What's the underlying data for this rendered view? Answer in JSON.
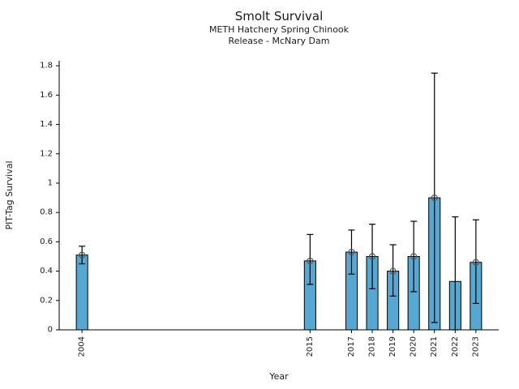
{
  "window": {
    "background": "#ffffff"
  },
  "chart_data": {
    "type": "bar",
    "title": "Smolt Survival",
    "subtitle": [
      "METH Hatchery Spring Chinook",
      "Release - McNary Dam"
    ],
    "xlabel": "Year",
    "ylabel": "PIT-Tag Survival",
    "categories": [
      "2004",
      "2015",
      "2017",
      "2018",
      "2019",
      "2020",
      "2021",
      "2022",
      "2023"
    ],
    "x": [
      2004,
      2015,
      2017,
      2018,
      2019,
      2020,
      2021,
      2022,
      2023
    ],
    "values": [
      0.51,
      0.47,
      0.53,
      0.5,
      0.4,
      0.5,
      0.9,
      0.33,
      0.46
    ],
    "error_low": [
      0.45,
      0.31,
      0.38,
      0.28,
      0.23,
      0.26,
      0.05,
      0.0,
      0.18
    ],
    "error_high": [
      0.57,
      0.65,
      0.68,
      0.72,
      0.58,
      0.74,
      1.75,
      0.77,
      0.75
    ],
    "point_marker_shown": [
      true,
      true,
      true,
      true,
      true,
      true,
      true,
      false,
      true
    ],
    "xlim": [
      2002.9,
      2024.1
    ],
    "ylim": [
      0,
      1.834
    ],
    "yticks": [
      0,
      0.2,
      0.4,
      0.6,
      0.8,
      1,
      1.2,
      1.4,
      1.6,
      1.8
    ],
    "ytick_labels": [
      "0",
      "0.2",
      "0.4",
      "0.6",
      "0.8",
      "1",
      "1.2",
      "1.4",
      "1.6",
      "1.8"
    ],
    "grid": false,
    "legend": false,
    "bar_width_years": 0.55,
    "colors": {
      "bar_fill": "#56a8d2",
      "bar_edge": "#000000",
      "errorbar": "#000000",
      "marker_edge": "#555555",
      "axis": "#000000",
      "text": "#1a1a1a"
    }
  }
}
